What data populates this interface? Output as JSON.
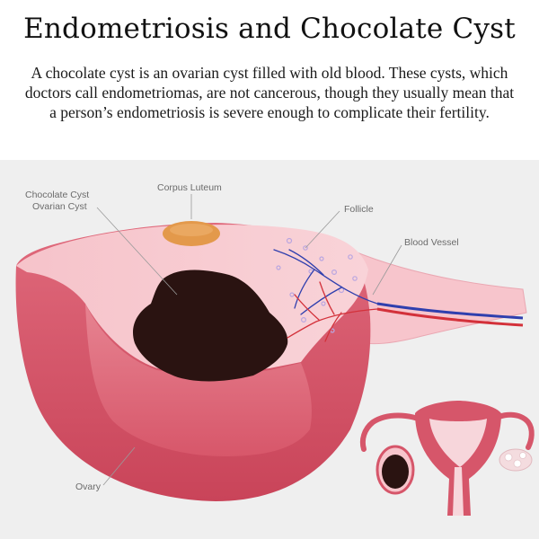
{
  "header": {
    "title": "Endometriosis and Chocolate Cyst",
    "description": "A chocolate cyst is an ovarian cyst filled with old blood. These cysts, which doctors call endometriomas, are not cancerous, though they usually mean that a person’s endometriosis is severe enough to complicate their fertility."
  },
  "diagram": {
    "labels": {
      "chocolate_cyst_line1": "Chocolate Cyst",
      "chocolate_cyst_line2": "Ovarian Cyst",
      "corpus_luteum": "Corpus Luteum",
      "follicle": "Follicle",
      "blood_vessel": "Blood Vessel",
      "ovary": "Ovary"
    },
    "colors": {
      "background": "#f0f0f0",
      "ovary_outer": "#d9546a",
      "ovary_top": "#f7c9cf",
      "cyst": "#2a1311",
      "corpus_luteum": "#e3994b",
      "artery": "#d3313a",
      "vein": "#2f3fae",
      "uterus": "#d6566a"
    }
  }
}
